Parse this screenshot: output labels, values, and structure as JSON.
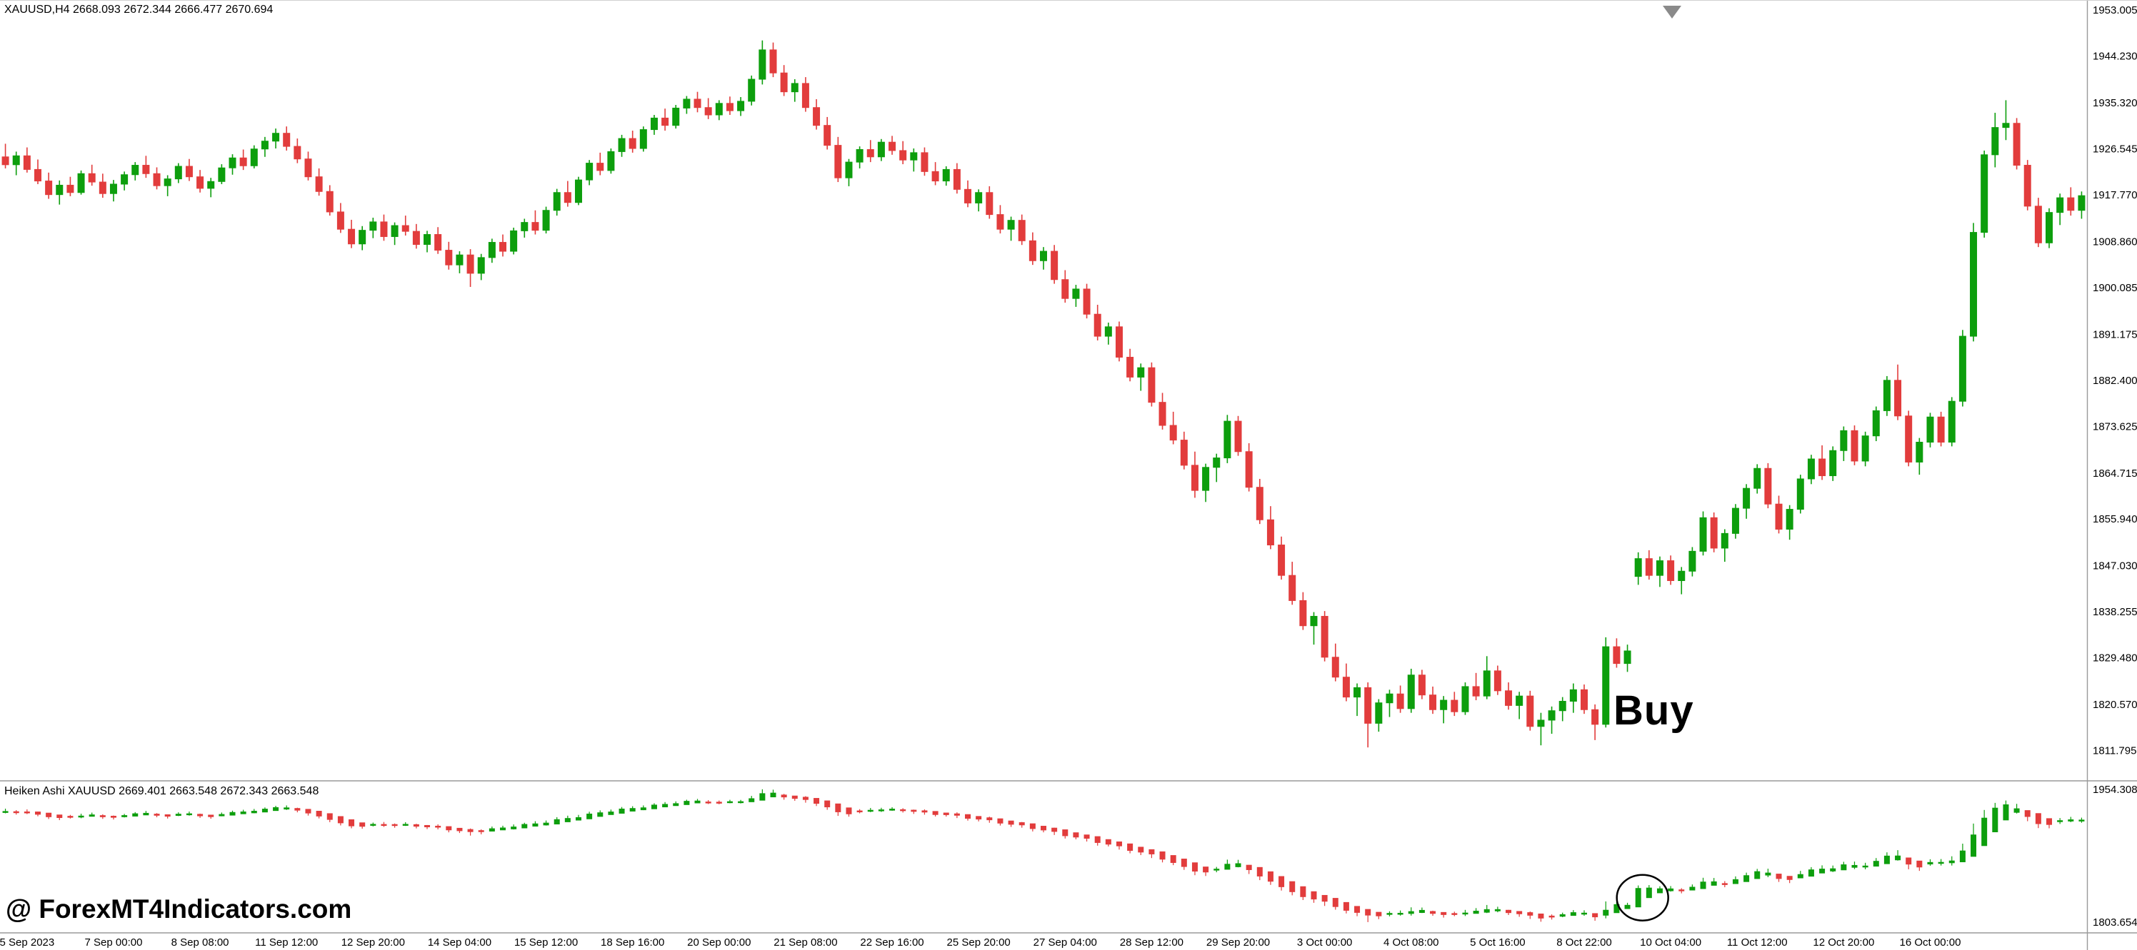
{
  "window": {
    "symbol_header": "XAUUSD,H4 2668.093 2672.344 2666.477 2670.694",
    "watermark": "@ ForexMT4Indicators.com",
    "buy_label": "Buy"
  },
  "colors": {
    "background": "#ffffff",
    "up": "#0d9e0d",
    "down": "#e23c3c",
    "axis_text": "#000000",
    "separator": "#9a9a9a",
    "shift_marker": "#8a8a8a",
    "annotation": "#000000"
  },
  "chart_data": {
    "type": "candlestick",
    "symbol": "XAUUSD",
    "timeframe": "H4",
    "ohlc_format": [
      "open",
      "high",
      "low",
      "close"
    ],
    "main_pane": {
      "price_axis_labels": [
        "1953.005",
        "1944.230",
        "1935.320",
        "1926.545",
        "1917.770",
        "1908.860",
        "1900.085",
        "1891.175",
        "1882.400",
        "1873.625",
        "1864.715",
        "1855.940",
        "1847.030",
        "1838.255",
        "1829.480",
        "1820.570",
        "1811.795"
      ],
      "price_range": [
        1806.3,
        1954.5
      ],
      "candles": [
        [
          1925.0,
          1927.5,
          1922.8,
          1923.5
        ],
        [
          1923.5,
          1926.0,
          1921.5,
          1925.2
        ],
        [
          1925.2,
          1926.8,
          1922.0,
          1922.6
        ],
        [
          1922.6,
          1924.5,
          1919.8,
          1920.4
        ],
        [
          1920.4,
          1922.0,
          1917.0,
          1917.8
        ],
        [
          1917.8,
          1920.5,
          1915.9,
          1919.6
        ],
        [
          1919.6,
          1921.2,
          1917.5,
          1918.2
        ],
        [
          1918.2,
          1922.4,
          1917.8,
          1921.8
        ],
        [
          1921.8,
          1923.5,
          1919.5,
          1920.2
        ],
        [
          1920.2,
          1921.8,
          1917.2,
          1918.0
        ],
        [
          1918.0,
          1920.6,
          1916.5,
          1919.8
        ],
        [
          1919.8,
          1922.2,
          1918.6,
          1921.6
        ],
        [
          1921.6,
          1924.0,
          1920.5,
          1923.4
        ],
        [
          1923.4,
          1925.2,
          1921.0,
          1921.8
        ],
        [
          1921.8,
          1923.0,
          1918.8,
          1919.5
        ],
        [
          1919.5,
          1921.5,
          1917.5,
          1920.8
        ],
        [
          1920.8,
          1923.8,
          1920.0,
          1923.2
        ],
        [
          1923.2,
          1924.6,
          1920.4,
          1921.2
        ],
        [
          1921.2,
          1922.5,
          1918.2,
          1919.0
        ],
        [
          1919.0,
          1921.0,
          1917.3,
          1920.3
        ],
        [
          1920.3,
          1923.6,
          1919.8,
          1922.9
        ],
        [
          1922.9,
          1925.5,
          1921.6,
          1924.8
        ],
        [
          1924.8,
          1926.4,
          1922.5,
          1923.3
        ],
        [
          1923.3,
          1927.2,
          1922.8,
          1926.5
        ],
        [
          1926.5,
          1928.8,
          1925.0,
          1928.0
        ],
        [
          1928.0,
          1930.4,
          1926.6,
          1929.5
        ],
        [
          1929.5,
          1930.8,
          1926.2,
          1927.0
        ],
        [
          1927.0,
          1928.5,
          1923.8,
          1924.6
        ],
        [
          1924.6,
          1926.0,
          1920.5,
          1921.2
        ],
        [
          1921.2,
          1922.8,
          1917.6,
          1918.4
        ],
        [
          1918.4,
          1919.6,
          1913.8,
          1914.5
        ],
        [
          1914.5,
          1916.2,
          1910.5,
          1911.2
        ],
        [
          1911.2,
          1913.0,
          1907.6,
          1908.4
        ],
        [
          1908.4,
          1911.8,
          1907.2,
          1911.0
        ],
        [
          1911.0,
          1913.4,
          1909.5,
          1912.6
        ],
        [
          1912.6,
          1914.0,
          1909.0,
          1909.8
        ],
        [
          1909.8,
          1912.5,
          1908.2,
          1911.9
        ],
        [
          1911.9,
          1913.8,
          1910.0,
          1910.8
        ],
        [
          1910.8,
          1912.2,
          1907.5,
          1908.3
        ],
        [
          1908.3,
          1910.9,
          1906.8,
          1910.2
        ],
        [
          1910.2,
          1911.6,
          1906.5,
          1907.2
        ],
        [
          1907.2,
          1908.8,
          1903.5,
          1904.4
        ],
        [
          1904.4,
          1907.0,
          1902.8,
          1906.3
        ],
        [
          1906.3,
          1907.4,
          1900.2,
          1902.8
        ],
        [
          1902.8,
          1906.5,
          1901.5,
          1905.8
        ],
        [
          1905.8,
          1909.4,
          1904.8,
          1908.7
        ],
        [
          1908.7,
          1910.2,
          1906.0,
          1907.0
        ],
        [
          1907.0,
          1911.5,
          1906.4,
          1910.9
        ],
        [
          1910.9,
          1913.2,
          1909.6,
          1912.5
        ],
        [
          1912.5,
          1914.8,
          1910.2,
          1911.0
        ],
        [
          1911.0,
          1915.5,
          1910.4,
          1914.8
        ],
        [
          1914.8,
          1918.9,
          1913.8,
          1918.2
        ],
        [
          1918.2,
          1920.4,
          1915.5,
          1916.3
        ],
        [
          1916.3,
          1921.2,
          1915.8,
          1920.6
        ],
        [
          1920.6,
          1924.4,
          1919.6,
          1923.8
        ],
        [
          1923.8,
          1925.8,
          1921.5,
          1922.4
        ],
        [
          1922.4,
          1926.6,
          1921.8,
          1926.0
        ],
        [
          1926.0,
          1929.2,
          1925.0,
          1928.5
        ],
        [
          1928.5,
          1930.0,
          1925.8,
          1926.6
        ],
        [
          1926.6,
          1930.8,
          1926.0,
          1930.2
        ],
        [
          1930.2,
          1933.0,
          1929.2,
          1932.4
        ],
        [
          1932.4,
          1934.2,
          1930.0,
          1931.0
        ],
        [
          1931.0,
          1934.9,
          1930.4,
          1934.3
        ],
        [
          1934.3,
          1936.6,
          1933.2,
          1936.0
        ],
        [
          1936.0,
          1937.4,
          1933.5,
          1934.4
        ],
        [
          1934.4,
          1936.2,
          1932.2,
          1933.0
        ],
        [
          1933.0,
          1935.8,
          1932.0,
          1935.2
        ],
        [
          1935.2,
          1936.5,
          1933.0,
          1933.8
        ],
        [
          1933.8,
          1936.4,
          1932.8,
          1935.6
        ],
        [
          1935.6,
          1940.5,
          1934.8,
          1939.8
        ],
        [
          1939.8,
          1947.2,
          1938.8,
          1945.4
        ],
        [
          1945.4,
          1946.8,
          1940.2,
          1941.0
        ],
        [
          1941.0,
          1942.5,
          1936.6,
          1937.4
        ],
        [
          1937.4,
          1939.8,
          1935.5,
          1939.0
        ],
        [
          1939.0,
          1940.2,
          1933.6,
          1934.4
        ],
        [
          1934.4,
          1936.0,
          1930.2,
          1931.0
        ],
        [
          1931.0,
          1932.6,
          1926.4,
          1927.2
        ],
        [
          1927.2,
          1928.8,
          1920.2,
          1921.0
        ],
        [
          1921.0,
          1924.6,
          1919.4,
          1924.0
        ],
        [
          1924.0,
          1927.0,
          1922.8,
          1926.4
        ],
        [
          1926.4,
          1928.2,
          1924.0,
          1925.0
        ],
        [
          1925.0,
          1928.4,
          1924.2,
          1927.8
        ],
        [
          1927.8,
          1929.0,
          1925.4,
          1926.2
        ],
        [
          1926.2,
          1928.0,
          1923.6,
          1924.4
        ],
        [
          1924.4,
          1926.6,
          1922.2,
          1925.8
        ],
        [
          1925.8,
          1926.8,
          1921.4,
          1922.2
        ],
        [
          1922.2,
          1924.0,
          1919.6,
          1920.4
        ],
        [
          1920.4,
          1923.2,
          1919.5,
          1922.6
        ],
        [
          1922.6,
          1923.8,
          1918.0,
          1918.8
        ],
        [
          1918.8,
          1920.5,
          1915.4,
          1916.2
        ],
        [
          1916.2,
          1918.8,
          1914.6,
          1918.2
        ],
        [
          1918.2,
          1919.4,
          1913.2,
          1914.0
        ],
        [
          1914.0,
          1915.8,
          1910.4,
          1911.2
        ],
        [
          1911.2,
          1913.6,
          1909.0,
          1912.9
        ],
        [
          1912.9,
          1914.0,
          1908.2,
          1909.0
        ],
        [
          1909.0,
          1910.6,
          1904.4,
          1905.2
        ],
        [
          1905.2,
          1907.8,
          1903.5,
          1907.0
        ],
        [
          1907.0,
          1908.2,
          1900.8,
          1901.6
        ],
        [
          1901.6,
          1903.4,
          1897.2,
          1898.0
        ],
        [
          1898.0,
          1900.6,
          1896.4,
          1899.8
        ],
        [
          1899.8,
          1900.8,
          1894.2,
          1895.0
        ],
        [
          1895.0,
          1896.8,
          1890.0,
          1890.8
        ],
        [
          1890.8,
          1893.4,
          1889.2,
          1892.6
        ],
        [
          1892.6,
          1893.6,
          1886.0,
          1886.8
        ],
        [
          1886.8,
          1888.4,
          1882.2,
          1883.0
        ],
        [
          1883.0,
          1885.6,
          1880.4,
          1884.8
        ],
        [
          1884.8,
          1885.8,
          1877.4,
          1878.2
        ],
        [
          1878.2,
          1880.0,
          1873.0,
          1873.8
        ],
        [
          1873.8,
          1876.4,
          1870.2,
          1871.0
        ],
        [
          1871.0,
          1872.6,
          1865.4,
          1866.2
        ],
        [
          1866.2,
          1868.8,
          1860.0,
          1861.4
        ],
        [
          1861.4,
          1866.5,
          1859.2,
          1865.8
        ],
        [
          1865.8,
          1868.4,
          1863.0,
          1867.6
        ],
        [
          1867.6,
          1875.8,
          1866.6,
          1874.6
        ],
        [
          1874.6,
          1875.6,
          1868.0,
          1868.8
        ],
        [
          1868.8,
          1870.4,
          1861.2,
          1862.0
        ],
        [
          1862.0,
          1863.6,
          1855.0,
          1855.8
        ],
        [
          1855.8,
          1858.4,
          1850.2,
          1851.0
        ],
        [
          1851.0,
          1852.6,
          1844.4,
          1845.2
        ],
        [
          1845.2,
          1847.8,
          1839.6,
          1840.4
        ],
        [
          1840.4,
          1842.0,
          1834.8,
          1835.6
        ],
        [
          1835.6,
          1838.2,
          1832.0,
          1837.4
        ],
        [
          1837.4,
          1838.4,
          1828.8,
          1829.6
        ],
        [
          1829.6,
          1832.2,
          1825.0,
          1825.8
        ],
        [
          1825.8,
          1828.4,
          1821.2,
          1822.0
        ],
        [
          1822.0,
          1824.6,
          1818.4,
          1823.8
        ],
        [
          1823.8,
          1824.8,
          1812.4,
          1817.0
        ],
        [
          1817.0,
          1821.6,
          1815.4,
          1820.9
        ],
        [
          1820.9,
          1823.4,
          1818.2,
          1822.6
        ],
        [
          1822.6,
          1824.2,
          1819.0,
          1819.8
        ],
        [
          1819.8,
          1827.4,
          1819.0,
          1826.2
        ],
        [
          1826.2,
          1827.2,
          1821.6,
          1822.4
        ],
        [
          1822.4,
          1824.0,
          1818.8,
          1819.6
        ],
        [
          1819.6,
          1822.2,
          1817.0,
          1821.4
        ],
        [
          1821.4,
          1823.0,
          1818.4,
          1819.2
        ],
        [
          1819.2,
          1824.8,
          1818.6,
          1824.0
        ],
        [
          1824.0,
          1826.6,
          1821.4,
          1822.2
        ],
        [
          1822.2,
          1829.8,
          1821.6,
          1827.0
        ],
        [
          1827.0,
          1828.0,
          1822.4,
          1823.2
        ],
        [
          1823.2,
          1824.8,
          1819.6,
          1820.4
        ],
        [
          1820.4,
          1823.0,
          1817.8,
          1822.2
        ],
        [
          1822.2,
          1823.2,
          1815.6,
          1816.4
        ],
        [
          1816.4,
          1819.0,
          1812.8,
          1817.6
        ],
        [
          1817.6,
          1820.2,
          1815.0,
          1819.4
        ],
        [
          1819.4,
          1822.0,
          1817.4,
          1821.2
        ],
        [
          1821.2,
          1824.6,
          1819.0,
          1823.4
        ],
        [
          1823.4,
          1824.4,
          1818.8,
          1819.6
        ],
        [
          1819.6,
          1820.6,
          1813.8,
          1816.8
        ],
        [
          1816.8,
          1833.4,
          1816.2,
          1831.6
        ],
        [
          1831.6,
          1833.2,
          1827.6,
          1828.4
        ],
        [
          1828.4,
          1832.0,
          1826.8,
          1830.8
        ],
        [
          1845.0,
          1849.6,
          1843.4,
          1848.4
        ],
        [
          1848.4,
          1850.0,
          1844.4,
          1845.2
        ],
        [
          1845.2,
          1848.8,
          1843.0,
          1848.0
        ],
        [
          1848.0,
          1849.0,
          1843.4,
          1844.2
        ],
        [
          1844.2,
          1846.8,
          1841.6,
          1846.0
        ],
        [
          1846.0,
          1850.6,
          1845.0,
          1849.8
        ],
        [
          1849.8,
          1857.4,
          1849.0,
          1856.2
        ],
        [
          1856.2,
          1857.2,
          1849.6,
          1850.4
        ],
        [
          1850.4,
          1854.0,
          1847.8,
          1853.2
        ],
        [
          1853.2,
          1858.8,
          1852.2,
          1858.0
        ],
        [
          1858.0,
          1862.6,
          1856.0,
          1861.8
        ],
        [
          1861.8,
          1866.4,
          1860.8,
          1865.6
        ],
        [
          1865.6,
          1866.6,
          1858.0,
          1858.8
        ],
        [
          1858.8,
          1860.4,
          1853.2,
          1854.0
        ],
        [
          1854.0,
          1858.6,
          1852.0,
          1857.8
        ],
        [
          1857.8,
          1864.4,
          1857.0,
          1863.6
        ],
        [
          1863.6,
          1868.2,
          1862.6,
          1867.4
        ],
        [
          1867.4,
          1870.0,
          1863.4,
          1864.2
        ],
        [
          1864.2,
          1869.8,
          1863.2,
          1869.0
        ],
        [
          1869.0,
          1873.6,
          1867.0,
          1872.8
        ],
        [
          1872.8,
          1873.8,
          1866.2,
          1867.0
        ],
        [
          1867.0,
          1872.6,
          1866.0,
          1871.8
        ],
        [
          1871.8,
          1877.4,
          1870.8,
          1876.6
        ],
        [
          1876.6,
          1883.2,
          1875.6,
          1882.4
        ],
        [
          1882.4,
          1885.4,
          1874.8,
          1875.6
        ],
        [
          1875.6,
          1876.6,
          1866.0,
          1866.8
        ],
        [
          1866.8,
          1871.4,
          1864.4,
          1870.6
        ],
        [
          1870.6,
          1876.2,
          1869.6,
          1875.4
        ],
        [
          1875.4,
          1876.4,
          1869.8,
          1870.6
        ],
        [
          1870.6,
          1879.2,
          1869.8,
          1878.4
        ],
        [
          1878.4,
          1892.0,
          1877.4,
          1890.8
        ],
        [
          1890.8,
          1912.4,
          1889.8,
          1910.6
        ],
        [
          1910.6,
          1926.2,
          1909.6,
          1925.4
        ],
        [
          1925.4,
          1933.4,
          1923.0,
          1930.6
        ],
        [
          1930.6,
          1935.8,
          1928.2,
          1931.4
        ],
        [
          1931.4,
          1932.4,
          1922.6,
          1923.4
        ],
        [
          1923.4,
          1924.4,
          1914.8,
          1915.6
        ],
        [
          1915.6,
          1917.2,
          1907.8,
          1908.6
        ],
        [
          1908.6,
          1915.2,
          1907.6,
          1914.4
        ],
        [
          1914.4,
          1918.0,
          1912.0,
          1917.2
        ],
        [
          1917.2,
          1919.2,
          1913.8,
          1914.8
        ],
        [
          1914.8,
          1918.4,
          1913.2,
          1917.6
        ]
      ]
    },
    "indicator_pane": {
      "name": "Heiken Ashi",
      "label": "Heiken Ashi XAUUSD 2669.401 2663.548 2672.343 2663.548",
      "axis_max": "1954.308",
      "axis_min": "1803.654"
    },
    "time_axis_labels": [
      "5 Sep 2023",
      "7 Sep 00:00",
      "8 Sep 08:00",
      "11 Sep 12:00",
      "12 Sep 20:00",
      "14 Sep 04:00",
      "15 Sep 12:00",
      "18 Sep 16:00",
      "20 Sep 00:00",
      "21 Sep 08:00",
      "22 Sep 16:00",
      "25 Sep 20:00",
      "27 Sep 04:00",
      "28 Sep 12:00",
      "29 Sep 20:00",
      "3 Oct 00:00",
      "4 Oct 08:00",
      "5 Oct 16:00",
      "8 Oct 22:00",
      "10 Oct 04:00",
      "11 Oct 12:00",
      "12 Oct 20:00",
      "16 Oct 00:00"
    ],
    "annotations": {
      "buy_bar": 148,
      "circle_bar": 151
    }
  }
}
